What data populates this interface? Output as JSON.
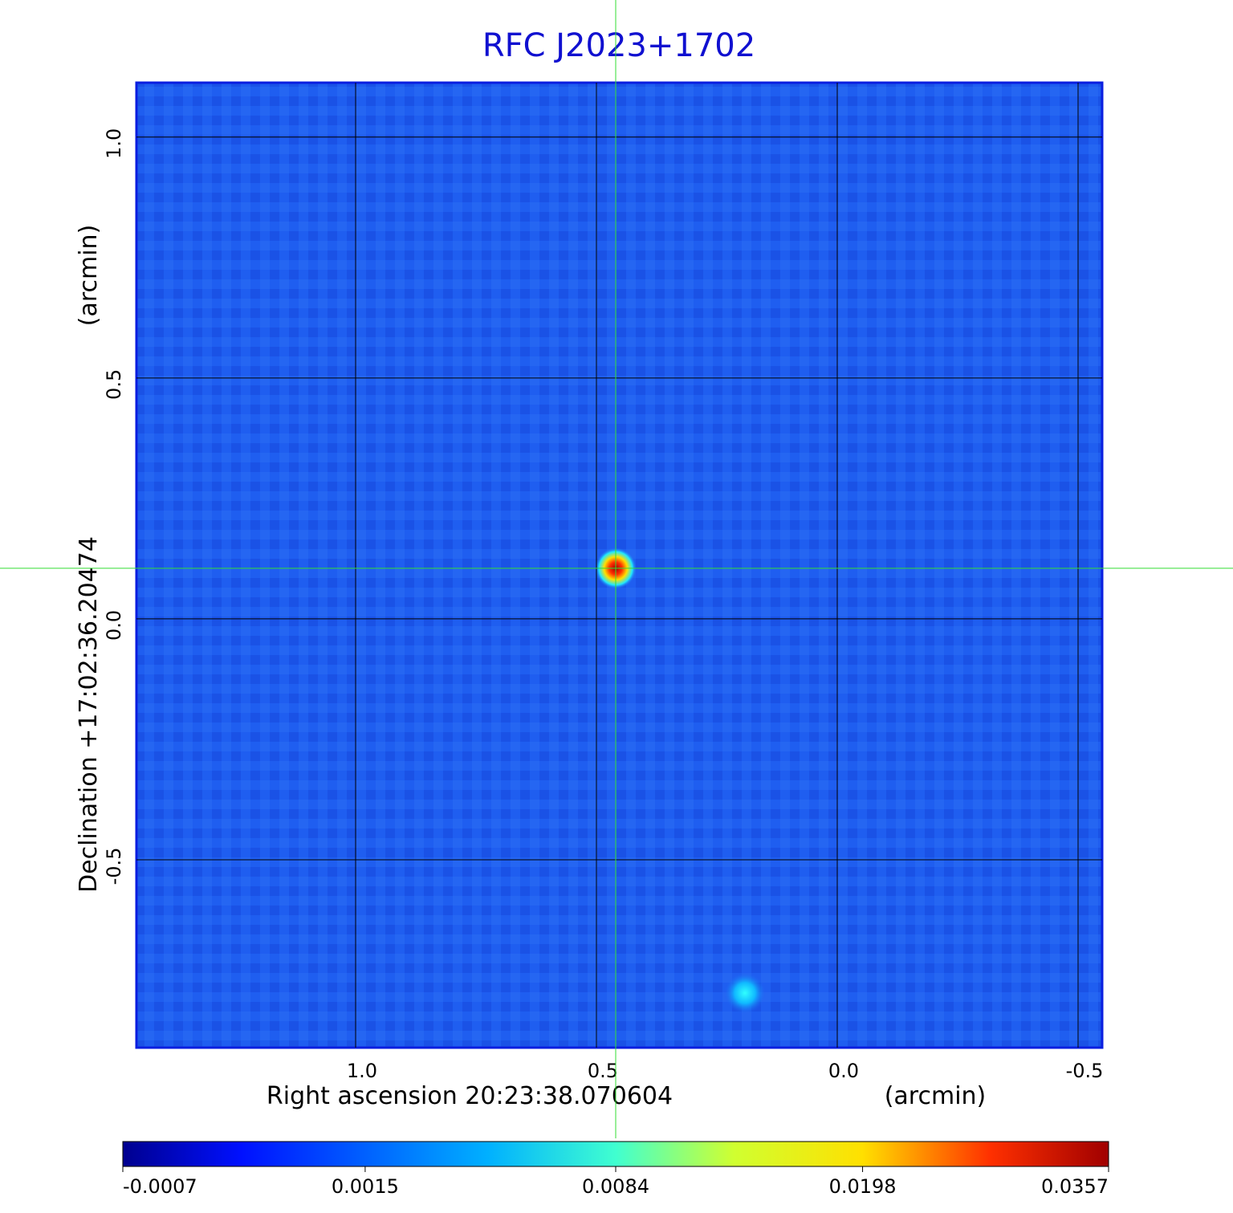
{
  "chart_data": {
    "type": "image",
    "title": "RFC J2023+1702",
    "x_label": "Right ascension  20:23:38.070604",
    "x_unit": "(arcmin)",
    "y_label": "Declination  +17:02:36.20474",
    "y_unit": "(arcmin)",
    "xlim": [
      1.455,
      -0.55
    ],
    "ylim": [
      -0.89,
      1.113
    ],
    "xticks": [
      {
        "value": 1,
        "label": "1.0"
      },
      0.5,
      {
        "value": 0,
        "label": "0.0"
      },
      -0.5
    ],
    "yticks": [
      {
        "value": 1,
        "label": "1.0"
      },
      0.5,
      {
        "value": 0,
        "label": "0.0"
      },
      -0.5
    ],
    "grid": true,
    "crosshair": {
      "x": 0.46,
      "y": 0.105,
      "color": "#33dd33"
    },
    "colorbar": {
      "scale": "sqrt",
      "clim": [
        -0.0007,
        0.0357
      ],
      "ticks": [
        -0.0007,
        0.0015,
        0.0084,
        0.0198,
        0.0357
      ]
    }
  }
}
